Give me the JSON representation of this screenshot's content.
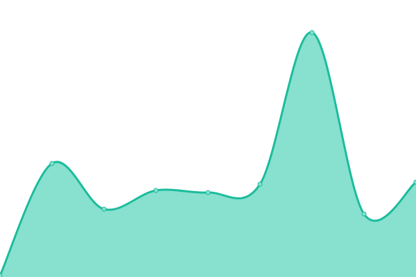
{
  "chart_data": {
    "type": "area",
    "x": [
      0,
      1,
      2,
      3,
      4,
      5,
      6,
      7,
      8
    ],
    "values": [
      1,
      82,
      49,
      62.5,
      61,
      67,
      176.5,
      45.5,
      68.5
    ],
    "ylim": [
      0,
      200
    ],
    "grid": false,
    "axes_visible": false,
    "smooth": true,
    "colors": {
      "line": "#1abc9c",
      "fill": "#88e0cf",
      "point_fill": "#88e0cf",
      "point_stroke": "#1abc9c"
    }
  }
}
